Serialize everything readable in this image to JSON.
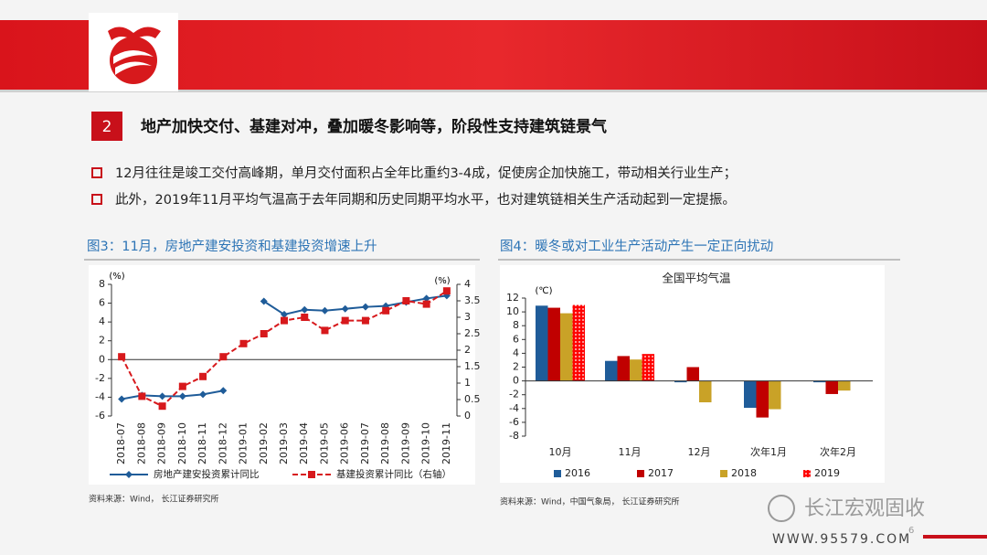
{
  "header": {
    "section": "2",
    "title": "地产加快交付、基建对冲，叠加暖冬影响等，阶段性支持建筑链景气"
  },
  "bullets": [
    "12月往往是竣工交付高峰期，单月交付面积占全年比重约3-4成，促使房企加快施工，带动相关行业生产；",
    "此外，2019年11月平均气温高于去年同期和历史同期平均水平，也对建筑链相关生产活动起到一定提振。"
  ],
  "chart_data": [
    {
      "type": "line",
      "figure_title": "图3：11月，房地产建安投资和基建投资增速上升",
      "source": "资料来源：Wind， 长江证券研究所",
      "y_label": "(%)",
      "y2_label": "(%)",
      "categories": [
        "2018-07",
        "2018-08",
        "2018-09",
        "2018-10",
        "2018-11",
        "2018-12",
        "2019-01",
        "2019-02",
        "2019-03",
        "2019-04",
        "2019-05",
        "2019-06",
        "2019-07",
        "2019-08",
        "2019-09",
        "2019-10",
        "2019-11"
      ],
      "series": [
        {
          "name": "房地产建安投资累计同比",
          "color": "#1f5c99",
          "marker": "diamond",
          "values": [
            -4.2,
            -3.8,
            -3.9,
            -3.9,
            -3.7,
            -3.3,
            null,
            6.2,
            4.8,
            5.3,
            5.2,
            5.4,
            5.6,
            5.7,
            6.1,
            6.5,
            6.8
          ]
        },
        {
          "name": "基建投资累计同比（右轴）",
          "color": "#d7191c",
          "marker": "square",
          "dashed": true,
          "axis": "y2",
          "values": [
            1.8,
            0.6,
            0.3,
            0.9,
            1.2,
            1.8,
            2.2,
            2.5,
            2.9,
            3.0,
            2.6,
            2.9,
            2.9,
            3.2,
            3.5,
            3.4,
            3.8
          ]
        }
      ],
      "ylim": [
        -6,
        8
      ],
      "yticks": [
        -6,
        -4,
        -2,
        0,
        2,
        4,
        6,
        8
      ],
      "y2lim": [
        0,
        4
      ],
      "y2ticks": [
        0,
        0.5,
        1,
        1.5,
        2,
        2.5,
        3,
        3.5,
        4
      ]
    },
    {
      "type": "bar",
      "figure_title": "图4：暖冬或对工业生产活动产生一定正向扰动",
      "source": "资料来源：Wind，中国气象局， 长江证券研究所",
      "title": "全国平均气温",
      "y_label": "(℃)",
      "categories": [
        "10月",
        "11月",
        "12月",
        "次年1月",
        "次年2月"
      ],
      "series": [
        {
          "name": "2016",
          "color": "#1f5c99",
          "values": [
            10.9,
            2.9,
            -0.2,
            -3.9,
            -0.2
          ]
        },
        {
          "name": "2017",
          "color": "#c00000",
          "values": [
            10.6,
            3.6,
            2.0,
            -5.3,
            -1.9
          ]
        },
        {
          "name": "2018",
          "color": "#c9a227",
          "values": [
            9.8,
            3.1,
            -3.1,
            -4.1,
            -1.4
          ]
        },
        {
          "name": "2019",
          "color": "#ff0000",
          "pattern": "dots",
          "values": [
            11.0,
            3.9,
            null,
            null,
            null
          ]
        }
      ],
      "ylim": [
        -8,
        12
      ],
      "yticks": [
        -8,
        -6,
        -4,
        -2,
        0,
        2,
        4,
        6,
        8,
        10,
        12
      ]
    }
  ],
  "footer": {
    "watermark": "长江宏观固收",
    "url": "WWW.95579.COM",
    "page": "6"
  }
}
